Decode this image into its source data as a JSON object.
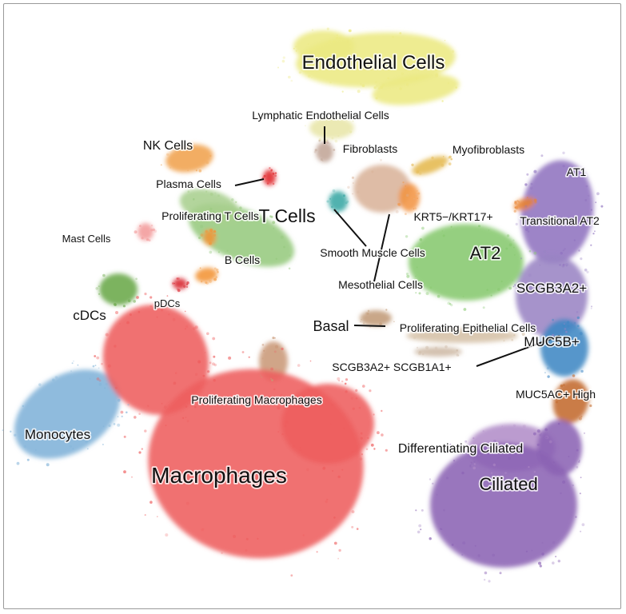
{
  "chart_data": {
    "type": "scatter",
    "title": "",
    "xlabel": "",
    "ylabel": "",
    "grid": false,
    "clusters": [
      {
        "name": "Endothelial Cells",
        "color": "#ece982"
      },
      {
        "name": "Lymphatic Endothelial Cells",
        "color": "#e8e6a8"
      },
      {
        "name": "Fibroblasts",
        "color": "#c2a596"
      },
      {
        "name": "Myofibroblasts",
        "color": "#e5b84f"
      },
      {
        "name": "NK Cells",
        "color": "#f0a24e"
      },
      {
        "name": "Plasma Cells",
        "color": "#e0272a"
      },
      {
        "name": "T Cells",
        "color": "#96c97e"
      },
      {
        "name": "Proliferating T Cells",
        "color": "#a9cf8e"
      },
      {
        "name": "Mast Cells",
        "color": "#f29a9a"
      },
      {
        "name": "B Cells",
        "color": "#f39437"
      },
      {
        "name": "Smooth Muscle Cells",
        "color": "#3aa7a4"
      },
      {
        "name": "Mesothelial Cells",
        "color": "#d9b39a"
      },
      {
        "name": "KRT5−/KRT17+",
        "color": "#f29543"
      },
      {
        "name": "AT1",
        "color": "#8f72bf"
      },
      {
        "name": "Transitional AT2",
        "color": "#e9822f"
      },
      {
        "name": "AT2",
        "color": "#86c86e"
      },
      {
        "name": "SCGB3A2+",
        "color": "#9a84c4"
      },
      {
        "name": "Basal",
        "color": "#c29b78"
      },
      {
        "name": "Proliferating Epithelial Cells",
        "color": "#d5c0a6"
      },
      {
        "name": "SCGB3A2+ SCGB1A1+",
        "color": "#cdb8a4"
      },
      {
        "name": "MUC5B+",
        "color": "#3f87c4"
      },
      {
        "name": "MUC5AC+ High",
        "color": "#c36a2c"
      },
      {
        "name": "Differentiating Ciliated",
        "color": "#b28dc8"
      },
      {
        "name": "Ciliated",
        "color": "#8b63b4"
      },
      {
        "name": "cDCs",
        "color": "#6aa84a"
      },
      {
        "name": "pDCs",
        "color": "#d8232c"
      },
      {
        "name": "Monocytes",
        "color": "#7fb2d8"
      },
      {
        "name": "Proliferating Macrophages",
        "color": "#c99878"
      },
      {
        "name": "Macrophages",
        "color": "#ee5d5d"
      }
    ],
    "labels": [
      {
        "text": "Endothelial Cells"
      },
      {
        "text": "Lymphatic Endothelial Cells"
      },
      {
        "text": "Fibroblasts"
      },
      {
        "text": "Myofibroblasts"
      },
      {
        "text": "NK Cells"
      },
      {
        "text": "Plasma Cells"
      },
      {
        "text": "T Cells"
      },
      {
        "text": "Proliferating T Cells"
      },
      {
        "text": "AT1"
      },
      {
        "text": "KRT5−/KRT17+"
      },
      {
        "text": "Transitional AT2"
      },
      {
        "text": "Mast Cells"
      },
      {
        "text": "Smooth Muscle Cells"
      },
      {
        "text": "B Cells"
      },
      {
        "text": "AT2"
      },
      {
        "text": "Mesothelial Cells"
      },
      {
        "text": "SCGB3A2+"
      },
      {
        "text": "cDCs"
      },
      {
        "text": "pDCs"
      },
      {
        "text": "Basal"
      },
      {
        "text": "Proliferating Epithelial Cells"
      },
      {
        "text": "MUC5B+"
      },
      {
        "text": "SCGB3A2+ SCGB1A1+"
      },
      {
        "text": "MUC5AC+ High"
      },
      {
        "text": "Proliferating Macrophages"
      },
      {
        "text": "Monocytes"
      },
      {
        "text": "Differentiating Ciliated"
      },
      {
        "text": "Macrophages"
      },
      {
        "text": "Ciliated"
      }
    ]
  }
}
